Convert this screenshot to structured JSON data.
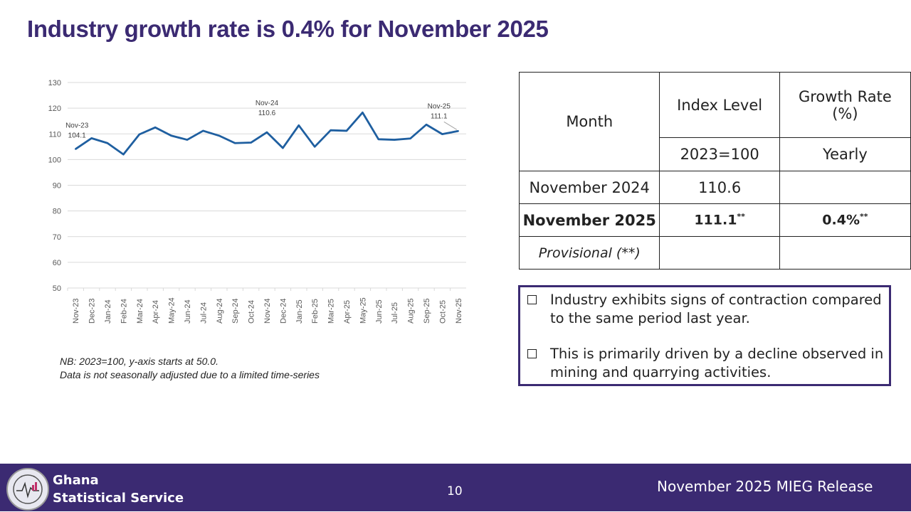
{
  "title": "Industry growth rate is 0.4% for November 2025",
  "chart_data": {
    "type": "line",
    "categories": [
      "Nov-23",
      "Dec-23",
      "Jan-24",
      "Feb-24",
      "Mar-24",
      "Apr-24",
      "May-24",
      "Jun-24",
      "Jul-24",
      "Aug-24",
      "Sep-24",
      "Oct-24",
      "Nov-24",
      "Dec-24",
      "Jan-25",
      "Feb-25",
      "Mar-25",
      "Apr-25",
      "May-25",
      "Jun-25",
      "Jul-25",
      "Aug-25",
      "Sep-25",
      "Oct-25",
      "Nov-25"
    ],
    "values": [
      104.1,
      108.3,
      106.4,
      102.0,
      109.8,
      112.5,
      109.3,
      107.7,
      111.2,
      109.3,
      106.4,
      106.6,
      110.6,
      104.5,
      113.3,
      105.0,
      111.4,
      111.2,
      118.3,
      107.9,
      107.7,
      108.2,
      113.6,
      109.9,
      111.1
    ],
    "ylim": [
      50,
      130
    ],
    "yticks": [
      50,
      60,
      70,
      80,
      90,
      100,
      110,
      120,
      130
    ],
    "grid": true,
    "color": "#1f5fa0",
    "annotations": [
      {
        "label": "Nov-23",
        "value": "104.1",
        "index": 0
      },
      {
        "label": "Nov-24",
        "value": "110.6",
        "index": 12
      },
      {
        "label": "Nov-25",
        "value": "111.1",
        "index": 24
      }
    ]
  },
  "note": [
    "NB: 2023=100, y-axis starts at 50.0.",
    "Data is not seasonally adjusted due to a limited time-series"
  ],
  "table": {
    "h_month": "Month",
    "h_index": "Index Level",
    "h_growth": "Growth Rate (%)",
    "sub_index": "2023=100",
    "sub_growth": "Yearly",
    "r1": {
      "month": "November 2024",
      "index": "110.6",
      "growth": ""
    },
    "r2": {
      "month": "November 2025",
      "index": "111.1",
      "index_sup": "**",
      "growth": "0.4%",
      "growth_sup": "**"
    },
    "r3": {
      "month": "Provisional (**)"
    }
  },
  "bullets": [
    "Industry exhibits signs of contraction compared to the same period last year.",
    "This is primarily driven by a decline observed in mining and quarrying activities."
  ],
  "footer": {
    "org_line1": "Ghana",
    "org_line2": "Statistical Service",
    "page": "10",
    "release": "November 2025 MIEG Release"
  }
}
